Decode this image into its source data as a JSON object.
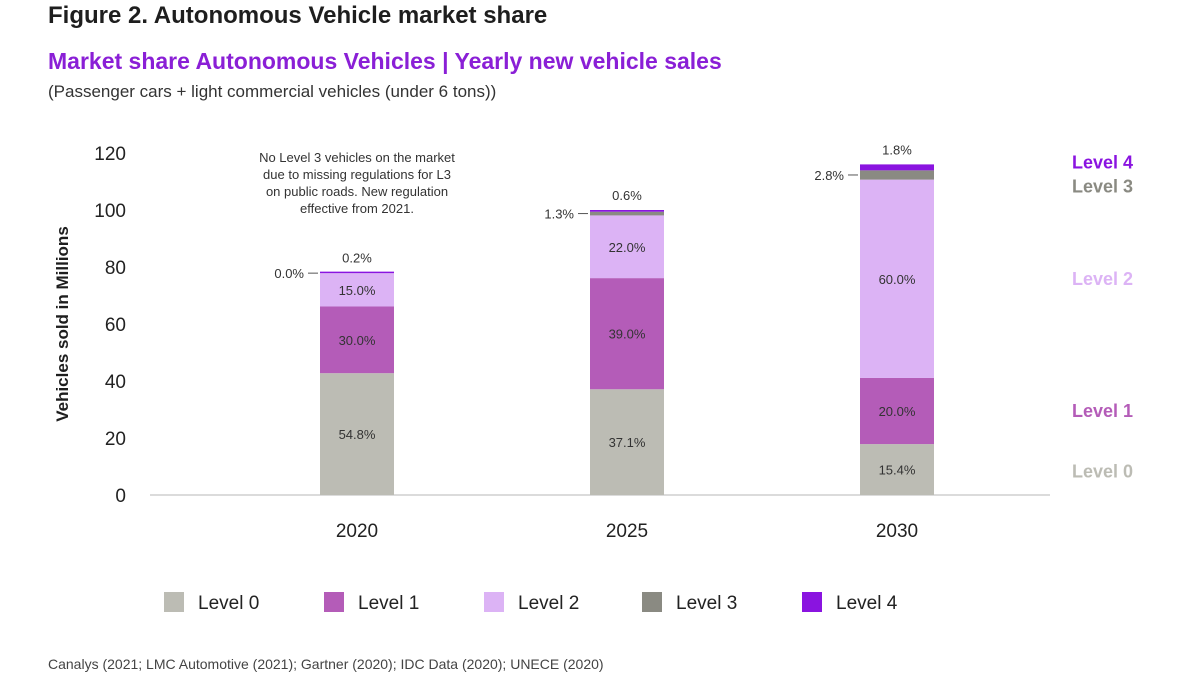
{
  "figure_title": "Figure 2. Autonomous Vehicle market share",
  "source": "Canalys (2021; LMC Automotive (2021); Gartner (2020); IDC Data (2020); UNECE (2020)",
  "colors": {
    "Level 0": "#bcbcb4",
    "Level 1": "#b45cb8",
    "Level 2": "#dcb3f5",
    "Level 3": "#8a8a82",
    "Level 4": "#8a14e0"
  },
  "chart_data": {
    "type": "bar",
    "stacked": true,
    "title": "Market share Autonomous Vehicles | Yearly new vehicle sales",
    "subtitle": "(Passenger cars + light commercial vehicles (under 6 tons))",
    "xlabel": "",
    "ylabel": "Vehicles sold in Millions",
    "ylim": [
      0,
      120
    ],
    "yticks": [
      "0",
      "20",
      "40",
      "60",
      "80",
      "100",
      "120"
    ],
    "categories": [
      "2020",
      "2025",
      "2030"
    ],
    "totals": [
      78,
      100,
      116
    ],
    "series": [
      {
        "name": "Level 0",
        "shares": [
          54.8,
          37.1,
          15.4
        ],
        "labels": [
          "54.8%",
          "37.1%",
          "15.4%"
        ]
      },
      {
        "name": "Level 1",
        "shares": [
          30.0,
          39.0,
          20.0
        ],
        "labels": [
          "30.0%",
          "39.0%",
          "20.0%"
        ]
      },
      {
        "name": "Level 2",
        "shares": [
          15.0,
          22.0,
          60.0
        ],
        "labels": [
          "15.0%",
          "22.0%",
          "60.0%"
        ]
      },
      {
        "name": "Level 3",
        "shares": [
          0.0,
          1.3,
          2.8
        ],
        "labels": [
          "0.0%",
          "1.3%",
          "2.8%"
        ]
      },
      {
        "name": "Level 4",
        "shares": [
          0.2,
          0.6,
          1.8
        ],
        "labels": [
          "0.2%",
          "0.6%",
          "1.8%"
        ]
      }
    ],
    "annotation": [
      "No Level 3 vehicles on the market",
      "due to missing regulations for L3",
      "on public roads. New regulation",
      "effective from 2021."
    ],
    "right_labels": [
      "Level 4",
      "Level 3",
      "Level 2",
      "Level 1",
      "Level 0"
    ],
    "legend": [
      "Level 0",
      "Level 1",
      "Level 2",
      "Level 3",
      "Level 4"
    ],
    "legend_position": "bottom"
  }
}
